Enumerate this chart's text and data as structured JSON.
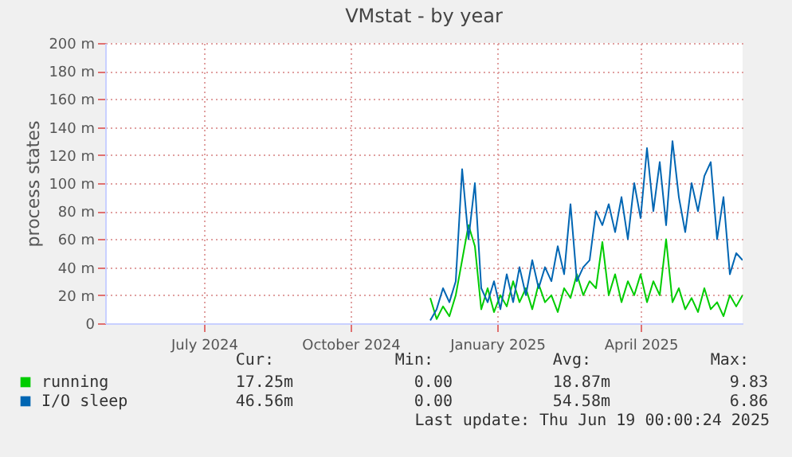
{
  "chart_data": {
    "type": "line",
    "title": "VMstat - by year",
    "ylabel": "process states",
    "x": [
      "2024-11-20",
      "2024-11-24",
      "2024-11-28",
      "2024-12-02",
      "2024-12-06",
      "2024-12-10",
      "2024-12-14",
      "2024-12-18",
      "2024-12-22",
      "2024-12-26",
      "2024-12-30",
      "2025-01-03",
      "2025-01-07",
      "2025-01-11",
      "2025-01-15",
      "2025-01-19",
      "2025-01-23",
      "2025-01-27",
      "2025-01-31",
      "2025-02-04",
      "2025-02-08",
      "2025-02-12",
      "2025-02-16",
      "2025-02-20",
      "2025-02-24",
      "2025-02-28",
      "2025-03-04",
      "2025-03-08",
      "2025-03-12",
      "2025-03-16",
      "2025-03-20",
      "2025-03-24",
      "2025-03-28",
      "2025-04-01",
      "2025-04-05",
      "2025-04-09",
      "2025-04-13",
      "2025-04-17",
      "2025-04-21",
      "2025-04-25",
      "2025-04-29",
      "2025-05-03",
      "2025-05-07",
      "2025-05-11",
      "2025-05-15",
      "2025-05-19",
      "2025-05-23",
      "2025-05-27",
      "2025-05-31",
      "2025-06-04"
    ],
    "series": [
      {
        "name": "running",
        "color": "#00cc00",
        "values": [
          18,
          3,
          12,
          5,
          20,
          45,
          70,
          55,
          10,
          25,
          8,
          20,
          12,
          30,
          15,
          25,
          10,
          28,
          15,
          20,
          8,
          25,
          18,
          35,
          20,
          30,
          25,
          58,
          20,
          35,
          15,
          30,
          20,
          35,
          15,
          30,
          20,
          60,
          15,
          25,
          10,
          18,
          8,
          25,
          10,
          15,
          5,
          20,
          12,
          20
        ]
      },
      {
        "name": "I/O sleep",
        "color": "#0066b3",
        "values": [
          2,
          10,
          25,
          15,
          30,
          110,
          60,
          100,
          25,
          15,
          30,
          10,
          35,
          15,
          40,
          20,
          45,
          25,
          40,
          30,
          55,
          35,
          85,
          30,
          40,
          45,
          80,
          70,
          85,
          65,
          90,
          60,
          100,
          75,
          125,
          80,
          115,
          70,
          130,
          90,
          65,
          100,
          80,
          105,
          115,
          60,
          90,
          35,
          50,
          45
        ]
      }
    ],
    "xlim": [
      "2024-04-30",
      "2025-06-04"
    ],
    "xticks": [
      {
        "value": "2024-07-01",
        "label": "July 2024"
      },
      {
        "value": "2024-10-01",
        "label": "October 2024"
      },
      {
        "value": "2025-01-01",
        "label": "January 2025"
      },
      {
        "value": "2025-04-01",
        "label": "April 2025"
      }
    ],
    "ylim": [
      0,
      200
    ],
    "yticks": [
      0,
      {
        "value": 20,
        "label": "20 m"
      },
      {
        "value": 40,
        "label": "40 m"
      },
      {
        "value": 60,
        "label": "60 m"
      },
      {
        "value": 80,
        "label": "80 m"
      },
      {
        "value": 100,
        "label": "100 m"
      },
      {
        "value": 120,
        "label": "120 m"
      },
      {
        "value": 140,
        "label": "140 m"
      },
      {
        "value": 160,
        "label": "160 m"
      },
      {
        "value": 180,
        "label": "180 m"
      },
      {
        "value": 200,
        "label": "200 m"
      }
    ],
    "grid": true,
    "legend": "bottom",
    "marker": "none",
    "line_style": "solid",
    "annotations": [
      "Cur:",
      "Min:",
      "Avg:",
      "Max:",
      "17.25m",
      "0.00",
      "18.87m",
      "9.83",
      "46.56m",
      "0.00",
      "54.58m",
      "6.86",
      "Last update: Thu Jun 19 00:00:24 2025"
    ]
  }
}
